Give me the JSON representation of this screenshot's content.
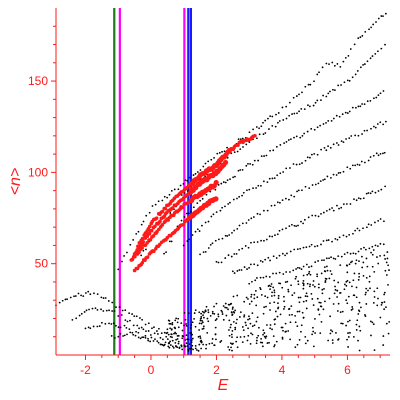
{
  "chart_data": {
    "type": "scatter",
    "title": "",
    "xlabel": "E",
    "ylabel": "<n>",
    "xlim": [
      -2.9,
      7.3
    ],
    "ylim": [
      0,
      190
    ],
    "xticks": [
      -2,
      0,
      2,
      4,
      6
    ],
    "yticks": [
      50,
      100,
      150
    ],
    "grid": false,
    "legend": "none",
    "axis_color": "#ff1a1a",
    "vlines": [
      {
        "x": -1.12,
        "color": "#1a7a1a"
      },
      {
        "x": -0.95,
        "color": "#ff00ff"
      },
      {
        "x": 1.02,
        "color": "#ff00ff"
      },
      {
        "x": 1.14,
        "color": "#1a1aff"
      },
      {
        "x": 1.22,
        "color": "#1a1aff"
      }
    ],
    "series": [
      {
        "color": "#000000",
        "curves": [
          [
            [
              -1.0,
              48
            ],
            [
              0,
              80
            ],
            [
              1,
              94
            ],
            [
              2,
              109
            ],
            [
              3,
              121
            ],
            [
              4,
              135
            ],
            [
              5,
              151
            ],
            [
              5.4,
              160
            ],
            [
              5.8,
              158
            ],
            [
              6.3,
              172
            ],
            [
              7.2,
              188
            ]
          ],
          [
            [
              -0.3,
              55
            ],
            [
              1,
              88
            ],
            [
              2,
              104
            ],
            [
              3,
              116
            ],
            [
              4,
              128
            ],
            [
              5,
              138
            ],
            [
              6,
              150
            ],
            [
              7.2,
              170
            ]
          ],
          [
            [
              0.4,
              55
            ],
            [
              1,
              76
            ],
            [
              2,
              92
            ],
            [
              3,
              104
            ],
            [
              4,
              115
            ],
            [
              5,
              124
            ],
            [
              6,
              133
            ],
            [
              7.2,
              145
            ]
          ],
          [
            [
              1,
              60
            ],
            [
              2,
              78
            ],
            [
              3,
              90
            ],
            [
              4,
              100
            ],
            [
              5,
              110
            ],
            [
              6,
              118
            ],
            [
              7.2,
              128
            ]
          ],
          [
            [
              1.5,
              55
            ],
            [
              2,
              62
            ],
            [
              3,
              74
            ],
            [
              4,
              84
            ],
            [
              5,
              94
            ],
            [
              6,
              102
            ],
            [
              7.2,
              112
            ]
          ],
          [
            [
              2,
              50
            ],
            [
              3,
              60
            ],
            [
              4,
              68
            ],
            [
              5,
              76
            ],
            [
              6,
              83
            ],
            [
              7.2,
              92
            ]
          ],
          [
            [
              2.5,
              45
            ],
            [
              4,
              55
            ],
            [
              5,
              60
            ],
            [
              6,
              66
            ],
            [
              7.2,
              75
            ]
          ],
          [
            [
              3,
              40
            ],
            [
              4,
              45
            ],
            [
              5,
              50
            ],
            [
              6,
              55
            ],
            [
              7.2,
              62
            ]
          ],
          [
            [
              -2.9,
              28
            ],
            [
              -2.4,
              32
            ],
            [
              -1.8,
              34
            ],
            [
              -1.3,
              30
            ],
            [
              -0.8,
              24
            ],
            [
              -0.2,
              18
            ],
            [
              0.4,
              12
            ],
            [
              1,
              10
            ]
          ],
          [
            [
              -2.4,
              20
            ],
            [
              -1.8,
              25
            ],
            [
              -1.2,
              24
            ],
            [
              -0.6,
              18
            ],
            [
              0,
              12
            ],
            [
              0.6,
              8
            ],
            [
              1.2,
              5
            ]
          ],
          [
            [
              -2,
              14
            ],
            [
              -1.4,
              18
            ],
            [
              -0.8,
              15
            ],
            [
              -0.2,
              10
            ],
            [
              0.4,
              6
            ],
            [
              1,
              4
            ],
            [
              1.6,
              3
            ]
          ],
          [
            [
              -1.2,
              10
            ],
            [
              -0.6,
              12
            ],
            [
              0,
              8
            ],
            [
              0.6,
              5
            ],
            [
              1.2,
              4
            ],
            [
              2,
              6
            ]
          ]
        ],
        "scatter_region": {
          "x": [
            0.5,
            7.3
          ],
          "y": [
            2,
            60
          ],
          "count": 520
        }
      },
      {
        "color": "#ff1a1a",
        "curves": [
          [
            [
              -0.4,
              60
            ],
            [
              0,
              72
            ],
            [
              0.5,
              82
            ],
            [
              1,
              90
            ],
            [
              1.5,
              98
            ],
            [
              2,
              104
            ],
            [
              2.3,
              110
            ],
            [
              2.7,
              116
            ],
            [
              3.2,
              120
            ]
          ],
          [
            [
              -0.5,
              55
            ],
            [
              0,
              68
            ],
            [
              0.5,
              78
            ],
            [
              1,
              86
            ],
            [
              1.5,
              94
            ],
            [
              2,
              100
            ],
            [
              2.3,
              106
            ]
          ],
          [
            [
              -0.6,
              52
            ],
            [
              0,
              64
            ],
            [
              0.5,
              74
            ],
            [
              1,
              82
            ],
            [
              1.5,
              88
            ],
            [
              2,
              94
            ]
          ],
          [
            [
              -0.5,
              46
            ],
            [
              0,
              56
            ],
            [
              0.5,
              64
            ],
            [
              1,
              72
            ],
            [
              1.5,
              80
            ],
            [
              2,
              86
            ]
          ]
        ]
      }
    ]
  }
}
